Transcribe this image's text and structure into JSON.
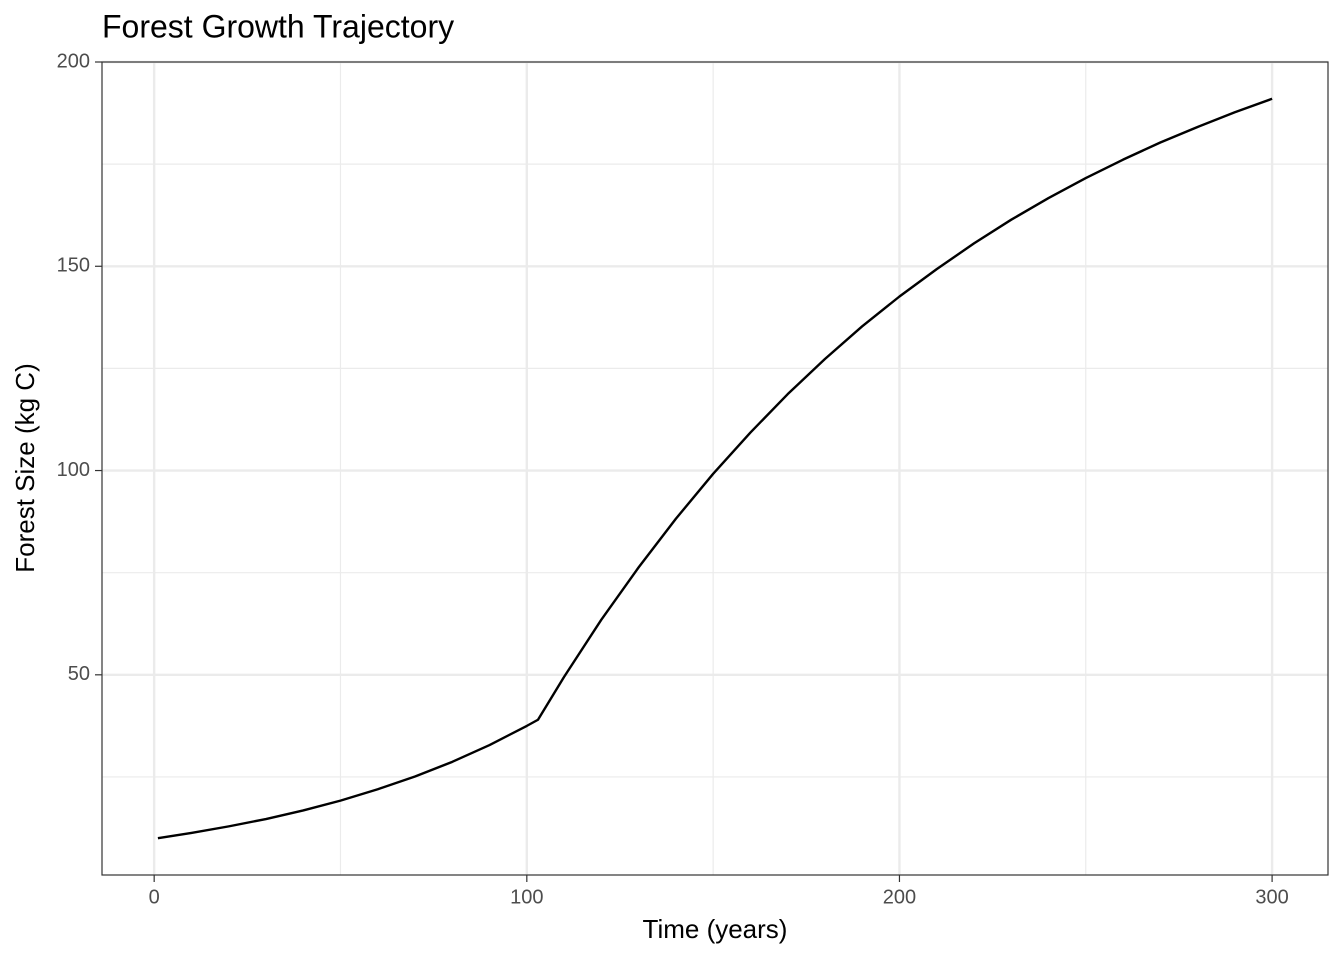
{
  "chart_data": {
    "type": "line",
    "title": "Forest Growth Trajectory",
    "x_label": "Time (years)",
    "y_label": "Forest Size (kg C)",
    "x": [
      1,
      10,
      20,
      30,
      40,
      50,
      60,
      70,
      80,
      90,
      100,
      103,
      110,
      120,
      130,
      140,
      150,
      160,
      170,
      180,
      190,
      200,
      210,
      220,
      230,
      240,
      250,
      260,
      270,
      280,
      290,
      300
    ],
    "values": [
      10,
      11.3,
      12.9,
      14.7,
      16.8,
      19.2,
      22.0,
      25.1,
      28.7,
      32.8,
      37.5,
      39.0,
      49.5,
      63.5,
      76.3,
      88.2,
      99.2,
      109.3,
      118.7,
      127.3,
      135.3,
      142.6,
      149.3,
      155.6,
      161.4,
      166.7,
      171.6,
      176.1,
      180.3,
      184.1,
      187.7,
      191.0
    ],
    "color": "#000000",
    "xlim": [
      -14,
      315
    ],
    "ylim": [
      1,
      200
    ],
    "xticks": [
      0,
      100,
      200,
      300
    ],
    "yticks": [
      50,
      100,
      150,
      200
    ],
    "x_minor_grid": [
      50,
      150,
      250
    ],
    "y_minor_grid": [
      25,
      75,
      125,
      175
    ],
    "grid": true
  }
}
